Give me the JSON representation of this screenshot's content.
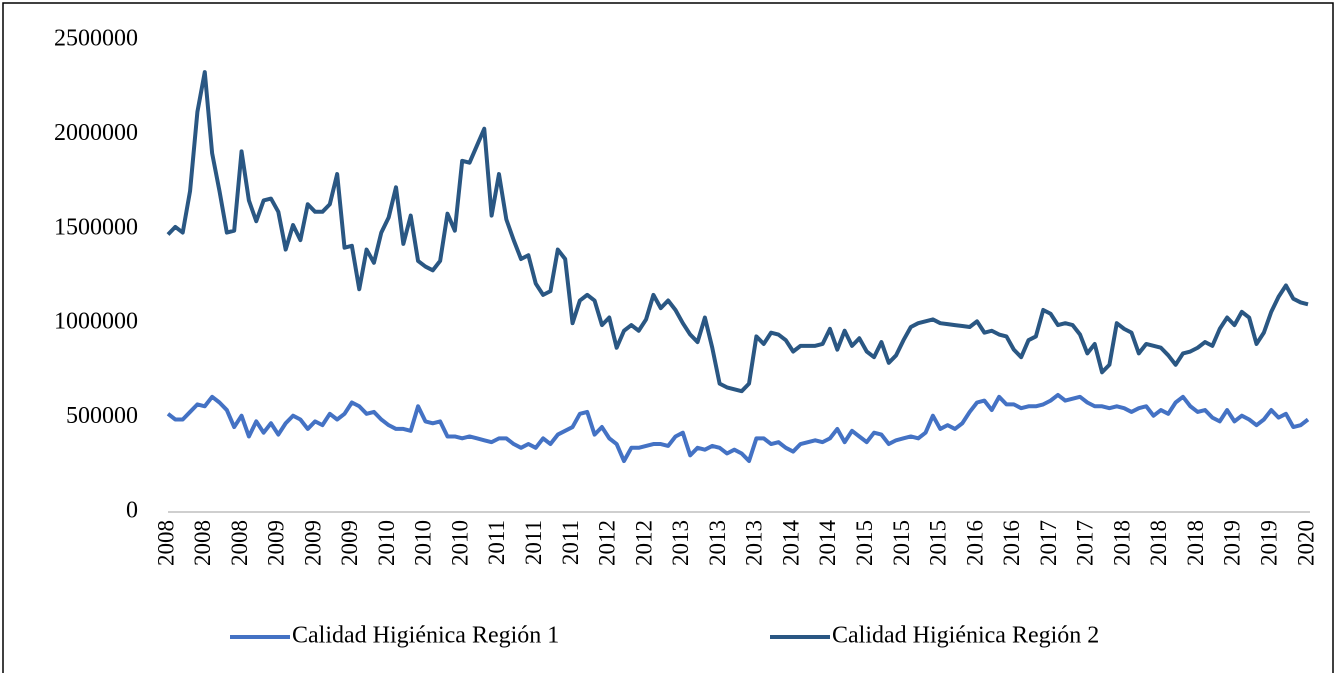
{
  "chart_data": {
    "type": "line",
    "categories": [
      "2008",
      null,
      null,
      null,
      null,
      "2008",
      null,
      null,
      null,
      null,
      "2008",
      null,
      null,
      null,
      null,
      "2009",
      null,
      null,
      null,
      null,
      "2009",
      null,
      null,
      null,
      null,
      "2009",
      null,
      null,
      null,
      null,
      "2010",
      null,
      null,
      null,
      null,
      "2010",
      null,
      null,
      null,
      null,
      "2010",
      null,
      null,
      null,
      null,
      "2011",
      null,
      null,
      null,
      null,
      "2011",
      null,
      null,
      null,
      null,
      "2011",
      null,
      null,
      null,
      null,
      "2012",
      null,
      null,
      null,
      null,
      "2012",
      null,
      null,
      null,
      null,
      "2013",
      null,
      null,
      null,
      null,
      "2013",
      null,
      null,
      null,
      null,
      "2013",
      null,
      null,
      null,
      null,
      "2014",
      null,
      null,
      null,
      null,
      "2014",
      null,
      null,
      null,
      null,
      "2015",
      null,
      null,
      null,
      null,
      "2015",
      null,
      null,
      null,
      null,
      "2015",
      null,
      null,
      null,
      null,
      "2016",
      null,
      null,
      null,
      null,
      "2016",
      null,
      null,
      null,
      null,
      "2017",
      null,
      null,
      null,
      null,
      "2017",
      null,
      null,
      null,
      null,
      "2018",
      null,
      null,
      null,
      null,
      "2018",
      null,
      null,
      null,
      null,
      "2018",
      null,
      null,
      null,
      null,
      "2019",
      null,
      null,
      null,
      null,
      "2019",
      null,
      null,
      null,
      null,
      "2020"
    ],
    "series": [
      {
        "name": "Calidad Higiénica Región 1",
        "color": "#4472c4",
        "values": [
          520000,
          490000,
          490000,
          530000,
          570000,
          560000,
          610000,
          580000,
          540000,
          450000,
          510000,
          400000,
          480000,
          420000,
          470000,
          410000,
          470000,
          510000,
          490000,
          440000,
          480000,
          460000,
          520000,
          490000,
          520000,
          580000,
          560000,
          520000,
          530000,
          490000,
          460000,
          440000,
          440000,
          430000,
          560000,
          480000,
          470000,
          480000,
          400000,
          400000,
          390000,
          400000,
          390000,
          380000,
          370000,
          390000,
          390000,
          360000,
          340000,
          360000,
          340000,
          390000,
          360000,
          410000,
          430000,
          450000,
          520000,
          530000,
          410000,
          450000,
          390000,
          360000,
          270000,
          340000,
          340000,
          350000,
          360000,
          360000,
          350000,
          400000,
          420000,
          300000,
          340000,
          330000,
          350000,
          340000,
          310000,
          330000,
          310000,
          270000,
          390000,
          390000,
          360000,
          370000,
          340000,
          320000,
          360000,
          370000,
          380000,
          370000,
          390000,
          440000,
          370000,
          430000,
          400000,
          370000,
          420000,
          410000,
          360000,
          380000,
          390000,
          400000,
          390000,
          420000,
          510000,
          440000,
          460000,
          440000,
          470000,
          530000,
          580000,
          590000,
          540000,
          610000,
          570000,
          570000,
          550000,
          560000,
          560000,
          570000,
          590000,
          620000,
          590000,
          600000,
          610000,
          580000,
          560000,
          560000,
          550000,
          560000,
          550000,
          530000,
          550000,
          560000,
          510000,
          540000,
          520000,
          580000,
          610000,
          560000,
          530000,
          540000,
          500000,
          480000,
          540000,
          480000,
          510000,
          490000,
          460000,
          490000,
          540000,
          500000,
          520000,
          450000,
          460000,
          490000
        ]
      },
      {
        "name": "Calidad Higiénica Región 2",
        "color": "#2a5783",
        "values": [
          1470000,
          1510000,
          1480000,
          1700000,
          2120000,
          2330000,
          1900000,
          1700000,
          1480000,
          1490000,
          1910000,
          1650000,
          1540000,
          1650000,
          1660000,
          1590000,
          1390000,
          1520000,
          1440000,
          1630000,
          1590000,
          1590000,
          1630000,
          1790000,
          1400000,
          1410000,
          1180000,
          1390000,
          1320000,
          1480000,
          1560000,
          1720000,
          1420000,
          1570000,
          1330000,
          1300000,
          1280000,
          1330000,
          1580000,
          1490000,
          1860000,
          1850000,
          1940000,
          2030000,
          1570000,
          1790000,
          1550000,
          1440000,
          1340000,
          1360000,
          1210000,
          1150000,
          1170000,
          1390000,
          1340000,
          1000000,
          1120000,
          1150000,
          1120000,
          990000,
          1030000,
          870000,
          960000,
          990000,
          960000,
          1020000,
          1150000,
          1080000,
          1120000,
          1070000,
          1000000,
          940000,
          900000,
          1030000,
          870000,
          680000,
          660000,
          650000,
          640000,
          680000,
          930000,
          890000,
          950000,
          940000,
          910000,
          850000,
          880000,
          880000,
          880000,
          890000,
          970000,
          860000,
          960000,
          880000,
          920000,
          850000,
          820000,
          900000,
          790000,
          830000,
          910000,
          980000,
          1000000,
          1010000,
          1020000,
          1000000,
          995000,
          990000,
          985000,
          980000,
          1010000,
          950000,
          960000,
          940000,
          930000,
          860000,
          820000,
          910000,
          930000,
          1070000,
          1050000,
          990000,
          1000000,
          990000,
          940000,
          840000,
          890000,
          740000,
          780000,
          1000000,
          970000,
          950000,
          840000,
          890000,
          880000,
          870000,
          830000,
          780000,
          840000,
          850000,
          870000,
          900000,
          880000,
          970000,
          1030000,
          990000,
          1060000,
          1030000,
          890000,
          950000,
          1060000,
          1140000,
          1200000,
          1130000,
          1110000,
          1100000
        ]
      }
    ],
    "ylim": [
      0,
      2500000
    ],
    "yticks": [
      0,
      500000,
      1000000,
      1500000,
      2000000,
      2500000
    ],
    "grid": false
  }
}
